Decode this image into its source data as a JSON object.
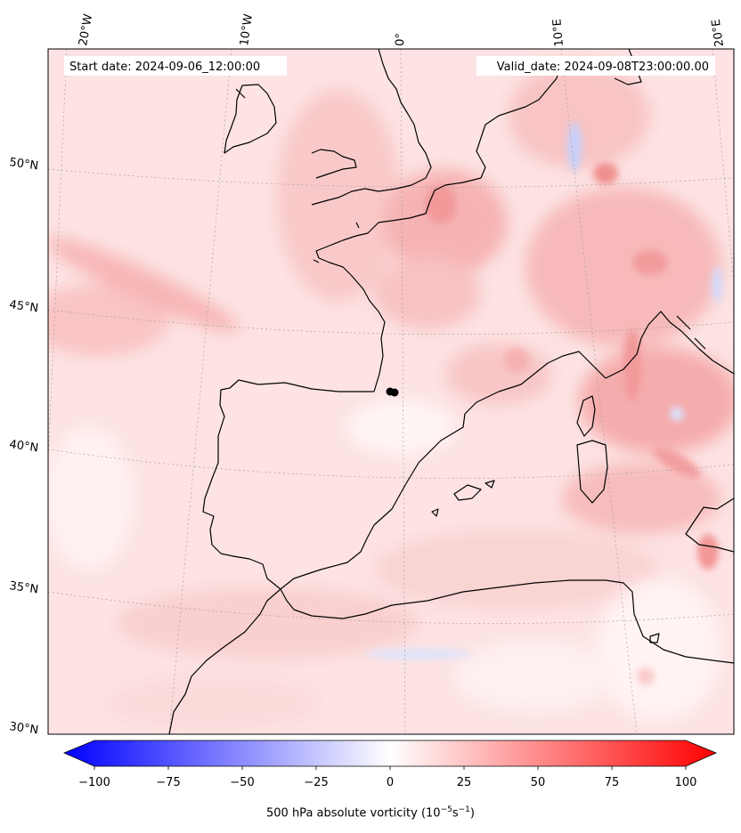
{
  "map": {
    "title_left": "Start date: 2024-09-06_12:00:00",
    "title_right": "Valid_date: 2024-09-08T23:00:00.00",
    "lon_labels": [
      "20°W",
      "10°W",
      "0°",
      "10°E",
      "20°E"
    ],
    "lat_labels": [
      "50°N",
      "45°N",
      "40°N",
      "35°N",
      "30°N"
    ],
    "field": "500 hPa absolute vorticity",
    "marker": "black dot"
  },
  "colorbar": {
    "min": -100,
    "max": 100,
    "ticks": [
      "−100",
      "−75",
      "−50",
      "−25",
      "0",
      "25",
      "50",
      "75",
      "100"
    ],
    "label_prefix": "500 hPa absolute vorticity (10",
    "label_exp1": "−5",
    "label_mid": "s",
    "label_exp2": "−1",
    "label_suffix": ")",
    "colormap": "bwr",
    "low_color": "#0000ff",
    "mid_color": "#ffffff",
    "high_color": "#ff0000"
  }
}
